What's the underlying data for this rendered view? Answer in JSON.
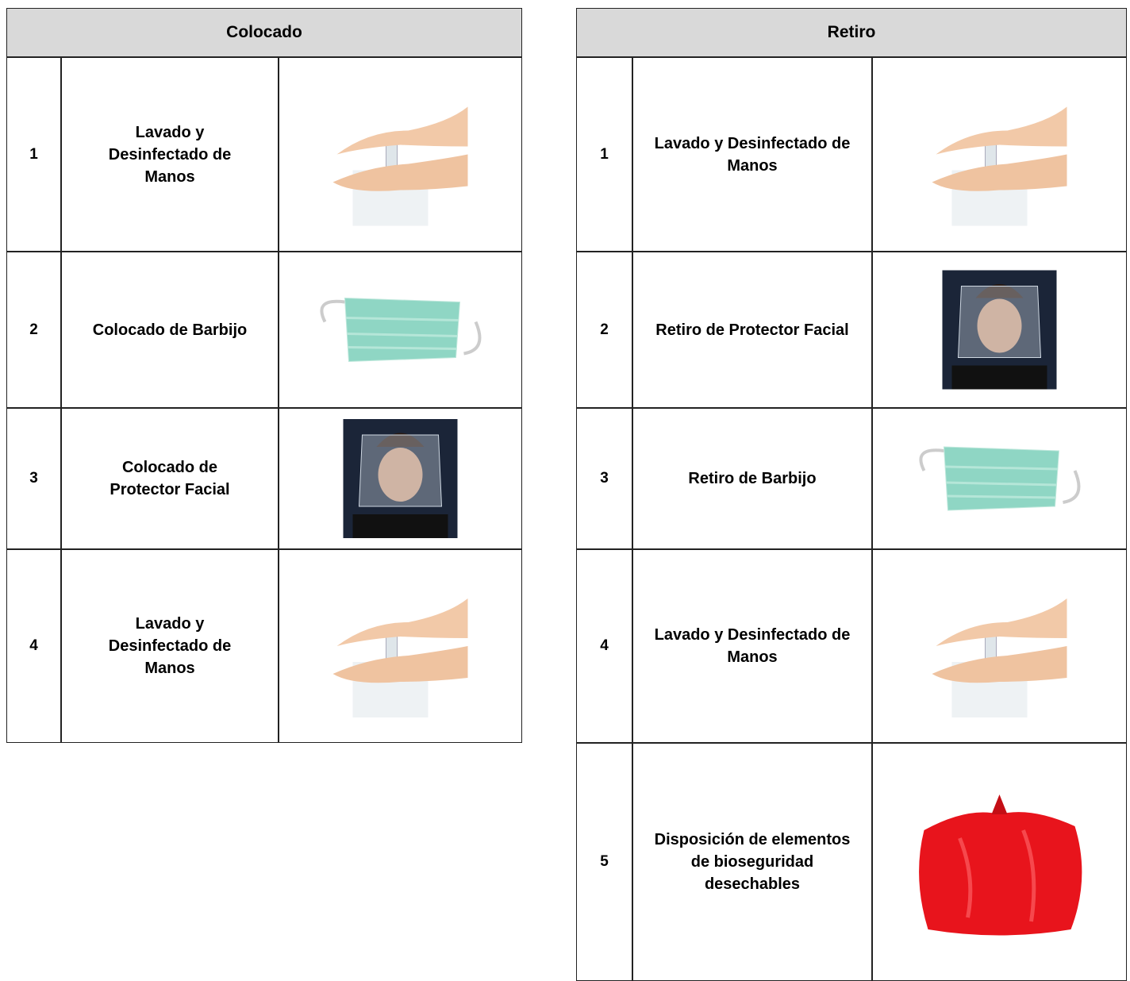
{
  "tables": [
    {
      "title": "Colocado",
      "rows": [
        [
          "1",
          "Lavado y Desinfectado de Manos"
        ],
        [
          "2",
          "Colocado de Barbijo"
        ],
        [
          "3",
          "Colocado de Protector Facial"
        ],
        [
          "4",
          "Lavado y Desinfectado de Manos"
        ]
      ]
    },
    {
      "title": "Retiro",
      "rows": [
        [
          "1",
          "Lavado y Desinfectado de Manos"
        ],
        [
          "2",
          "Retiro de Protector Facial"
        ],
        [
          "3",
          "Retiro de Barbijo"
        ],
        [
          "4",
          "Lavado y Desinfectado de Manos"
        ],
        [
          "5",
          "Disposición de elementos de bioseguridad desechables"
        ]
      ]
    }
  ]
}
